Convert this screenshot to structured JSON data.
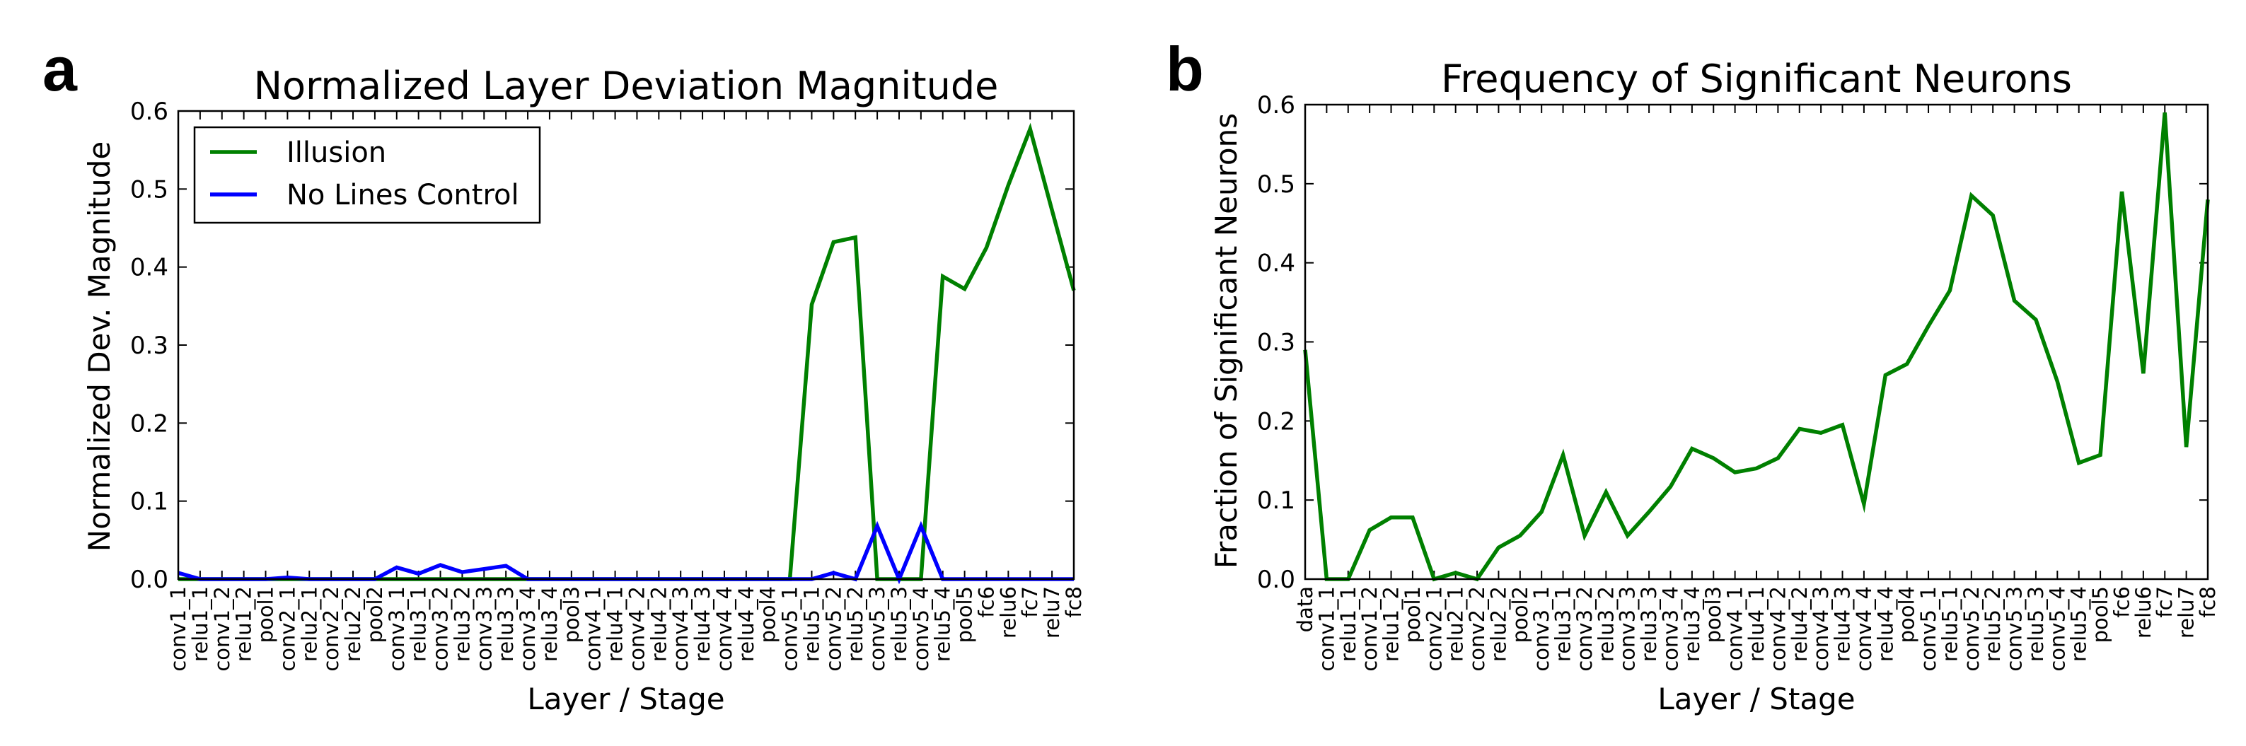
{
  "chart_data": [
    {
      "panel": "a",
      "type": "line",
      "title": "Normalized Layer Deviation Magnitude",
      "xlabel": "Layer / Stage",
      "ylabel": "Normalized Dev. Magnitude",
      "ylim": [
        0,
        0.6
      ],
      "yticks": [
        "0.0",
        "0.1",
        "0.2",
        "0.3",
        "0.4",
        "0.5",
        "0.6"
      ],
      "legend_position": "top-left",
      "categories": [
        "conv1_1",
        "relu1_1",
        "conv1_2",
        "relu1_2",
        "pool1",
        "conv2_1",
        "relu2_1",
        "conv2_2",
        "relu2_2",
        "pool2",
        "conv3_1",
        "relu3_1",
        "conv3_2",
        "relu3_2",
        "conv3_3",
        "relu3_3",
        "conv3_4",
        "relu3_4",
        "pool3",
        "conv4_1",
        "relu4_1",
        "conv4_2",
        "relu4_2",
        "conv4_3",
        "relu4_3",
        "conv4_4",
        "relu4_4",
        "pool4",
        "conv5_1",
        "relu5_1",
        "conv5_2",
        "relu5_2",
        "conv5_3",
        "relu5_3",
        "conv5_4",
        "relu5_4",
        "pool5",
        "fc6",
        "relu6",
        "fc7",
        "relu7",
        "fc8"
      ],
      "series": [
        {
          "name": "Illusion",
          "color": "#008000",
          "values": [
            0,
            0,
            0,
            0,
            0,
            0,
            0,
            0,
            0,
            0,
            0,
            0,
            0,
            0,
            0,
            0,
            0,
            0,
            0,
            0,
            0,
            0,
            0,
            0,
            0,
            0,
            0,
            0,
            0,
            0.352,
            0.432,
            0.438,
            0,
            0,
            0,
            0.388,
            0.372,
            0.425,
            0.505,
            0.577,
            0.473,
            0.37
          ]
        },
        {
          "name": "No Lines Control",
          "color": "#0000ff",
          "values": [
            0.008,
            0,
            0,
            0,
            0,
            0.002,
            0,
            0,
            0,
            0,
            0.015,
            0.007,
            0.018,
            0.009,
            0.013,
            0.017,
            0,
            0,
            0,
            0,
            0,
            0,
            0,
            0,
            0,
            0,
            0,
            0,
            0,
            0,
            0.008,
            0,
            0.068,
            0,
            0.068,
            0,
            0,
            0,
            0,
            0,
            0,
            0
          ]
        }
      ]
    },
    {
      "panel": "b",
      "type": "line",
      "title": "Frequency of Significant Neurons",
      "xlabel": "Layer / Stage",
      "ylabel": "Fraction of Significant Neurons",
      "ylim": [
        0,
        0.6
      ],
      "yticks": [
        "0.0",
        "0.1",
        "0.2",
        "0.3",
        "0.4",
        "0.5",
        "0.6"
      ],
      "categories": [
        "data",
        "conv1_1",
        "relu1_1",
        "conv1_2",
        "relu1_2",
        "pool1",
        "conv2_1",
        "relu2_1",
        "conv2_2",
        "relu2_2",
        "pool2",
        "conv3_1",
        "relu3_1",
        "conv3_2",
        "relu3_2",
        "conv3_3",
        "relu3_3",
        "conv3_4",
        "relu3_4",
        "pool3",
        "conv4_1",
        "relu4_1",
        "conv4_2",
        "relu4_2",
        "conv4_3",
        "relu4_3",
        "conv4_4",
        "relu4_4",
        "pool4",
        "conv5_1",
        "relu5_1",
        "conv5_2",
        "relu5_2",
        "conv5_3",
        "relu5_3",
        "conv5_4",
        "relu5_4",
        "pool5",
        "fc6",
        "relu6",
        "fc7",
        "relu7",
        "fc8"
      ],
      "series": [
        {
          "name": "Fraction of Significant Neurons",
          "color": "#008000",
          "values": [
            0.29,
            0,
            0,
            0.062,
            0.078,
            0.078,
            0,
            0.008,
            0,
            0.04,
            0.055,
            0.085,
            0.157,
            0.055,
            0.11,
            0.055,
            0.085,
            0.117,
            0.165,
            0.153,
            0.135,
            0.14,
            0.153,
            0.19,
            0.185,
            0.195,
            0.095,
            0.258,
            0.272,
            0.32,
            0.365,
            0.485,
            0.46,
            0.352,
            0.328,
            0.25,
            0.147,
            0.157,
            0.49,
            0.26,
            0.59,
            0.167,
            0.48
          ]
        }
      ]
    }
  ]
}
